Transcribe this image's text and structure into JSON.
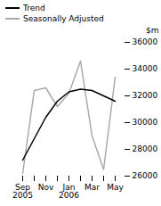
{
  "chart_data": {
    "type": "line",
    "ylabel": "$m",
    "categories": [
      "Sep\n2005",
      null,
      "Nov",
      null,
      "Jan\n2006",
      null,
      "Mar",
      null,
      "May"
    ],
    "series": [
      {
        "name": "Trend",
        "color": "#000000",
        "values": [
          27200,
          28800,
          30400,
          31600,
          32300,
          32500,
          32400,
          32000,
          31600
        ]
      },
      {
        "name": "Seasonally Adjusted",
        "color": "#aaaaaa",
        "values": [
          26200,
          32400,
          32600,
          31200,
          32200,
          34600,
          29000,
          26500,
          33400
        ]
      }
    ],
    "ylim": [
      26000,
      36000
    ],
    "yticks": [
      26000,
      28000,
      30000,
      32000,
      34000,
      36000
    ],
    "grid": false,
    "legend": "upper left"
  }
}
